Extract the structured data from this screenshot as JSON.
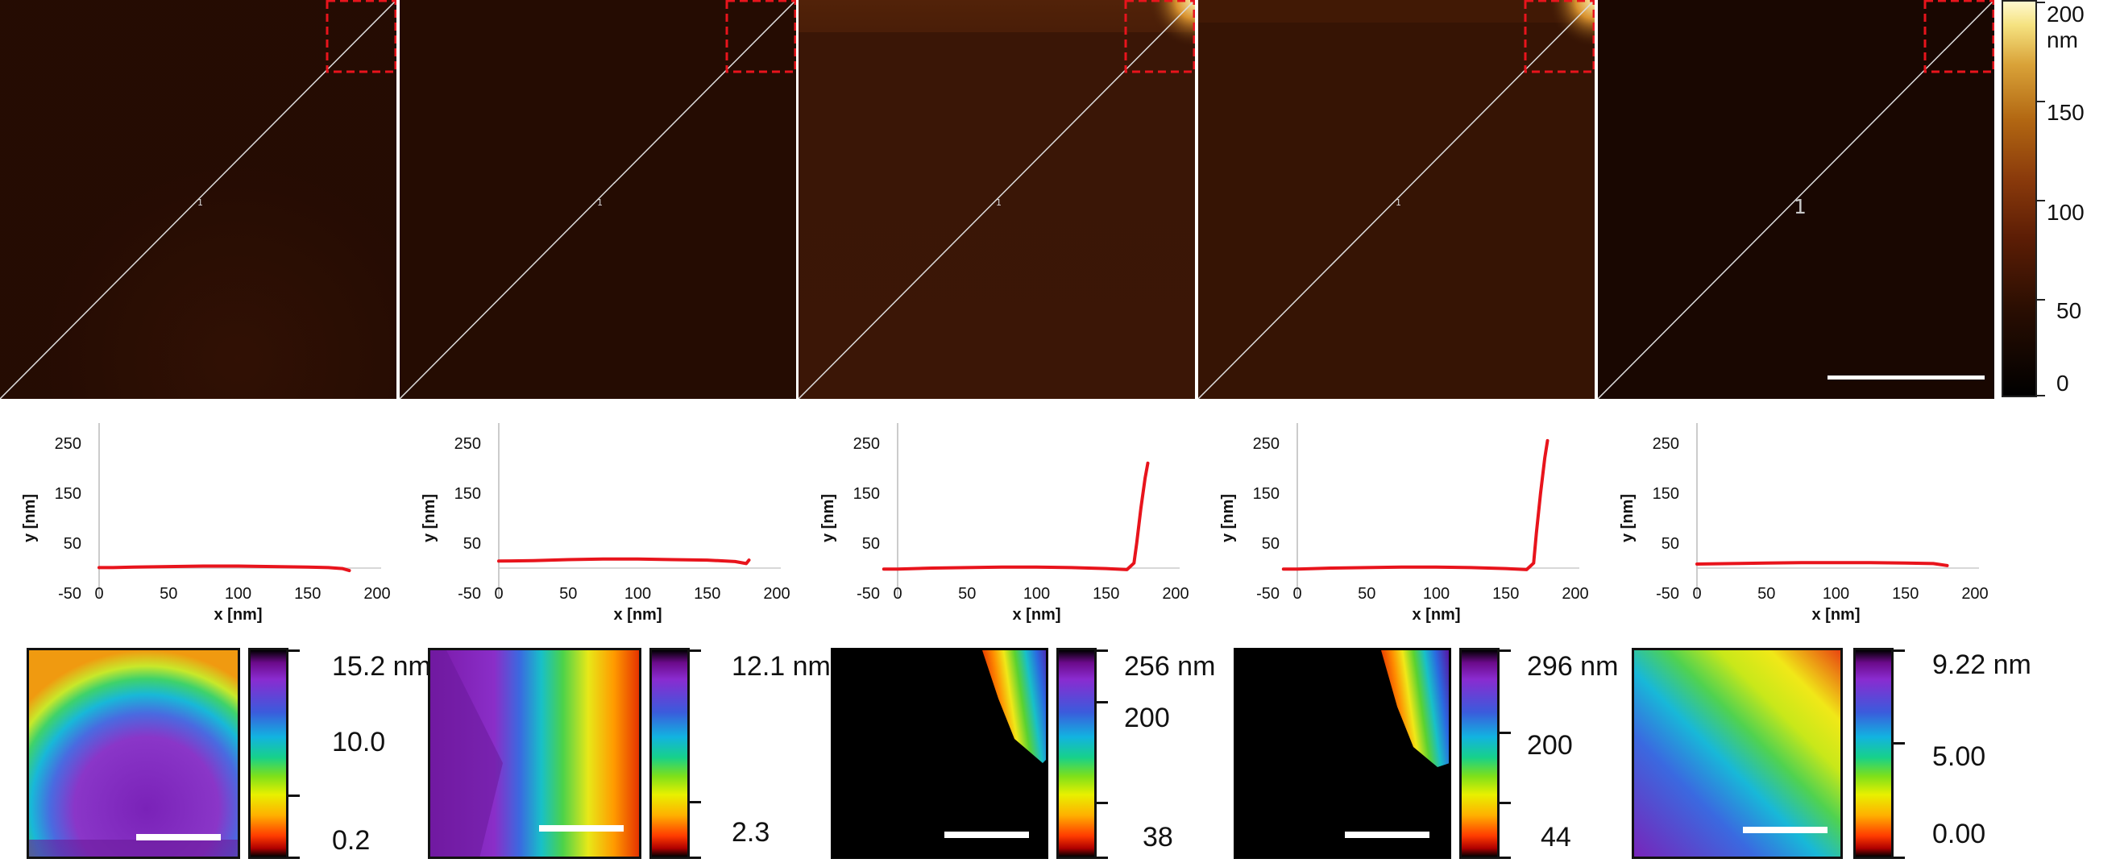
{
  "profile_label": "1",
  "height_colorbar": {
    "labels": [
      "200 nm",
      "150",
      "100",
      "50",
      "0"
    ]
  },
  "panels": [
    {
      "profile_max_nm": 8,
      "inset_labels": [
        "15.2 nm",
        "10.0",
        "0.2"
      ]
    },
    {
      "profile_max_nm": 14,
      "inset_labels": [
        "12.1 nm",
        "2.3"
      ]
    },
    {
      "profile_max_nm": 200,
      "inset_labels": [
        "256 nm",
        "200",
        "38"
      ]
    },
    {
      "profile_max_nm": 250,
      "inset_labels": [
        "296 nm",
        "200",
        "44"
      ]
    },
    {
      "profile_max_nm": 8,
      "inset_labels": [
        "9.22 nm",
        "5.00",
        "0.00"
      ]
    }
  ],
  "plot_axes": {
    "x_ticks": [
      "0",
      "50",
      "100",
      "150",
      "200"
    ],
    "y_ticks": [
      "250",
      "150",
      "50",
      "-50"
    ],
    "xlabel": "x [nm]",
    "ylabel": "y [nm]"
  },
  "colors": {
    "profile_line": "#e8141c",
    "roi_box": "#e8141c"
  },
  "chart_data": [
    {
      "type": "line",
      "xlabel": "x [nm]",
      "ylabel": "y [nm]",
      "xlim": [
        0,
        200
      ],
      "ylim": [
        -50,
        300
      ],
      "x": [
        0,
        10,
        25,
        50,
        75,
        100,
        125,
        150,
        165,
        175,
        180
      ],
      "y": [
        1,
        1,
        2,
        3,
        4,
        4,
        3,
        2,
        1,
        -1,
        -5
      ]
    },
    {
      "type": "line",
      "xlabel": "x [nm]",
      "ylabel": "y [nm]",
      "xlim": [
        0,
        200
      ],
      "ylim": [
        -50,
        300
      ],
      "x": [
        0,
        25,
        50,
        75,
        100,
        125,
        150,
        170,
        178,
        180
      ],
      "y": [
        14,
        15,
        17,
        18,
        18,
        17,
        16,
        13,
        9,
        16
      ]
    },
    {
      "type": "line",
      "xlabel": "x [nm]",
      "ylabel": "y [nm]",
      "xlim": [
        0,
        200
      ],
      "ylim": [
        -50,
        300
      ],
      "x": [
        -10,
        0,
        25,
        50,
        75,
        100,
        125,
        150,
        165,
        170,
        172,
        175,
        178,
        180
      ],
      "y": [
        -2,
        -2,
        0,
        1,
        2,
        2,
        1,
        -1,
        -3,
        10,
        50,
        120,
        180,
        210
      ]
    },
    {
      "type": "line",
      "xlabel": "x [nm]",
      "ylabel": "y [nm]",
      "xlim": [
        0,
        200
      ],
      "ylim": [
        -50,
        300
      ],
      "x": [
        -10,
        0,
        25,
        50,
        75,
        100,
        125,
        150,
        165,
        170,
        172,
        175,
        178,
        180
      ],
      "y": [
        -2,
        -2,
        0,
        1,
        2,
        2,
        1,
        -1,
        -3,
        10,
        70,
        150,
        220,
        255
      ]
    },
    {
      "type": "line",
      "xlabel": "x [nm]",
      "ylabel": "y [nm]",
      "xlim": [
        0,
        200
      ],
      "ylim": [
        -50,
        300
      ],
      "x": [
        0,
        25,
        50,
        75,
        100,
        125,
        150,
        170,
        180
      ],
      "y": [
        8,
        9,
        10,
        11,
        11,
        11,
        10,
        9,
        5
      ]
    }
  ]
}
